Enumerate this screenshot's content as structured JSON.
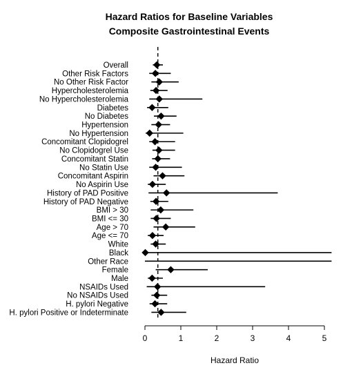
{
  "chart_data": {
    "type": "forest",
    "title_line1": "Hazard Ratios for Baseline Variables",
    "title_line2": "Composite Gastrointestinal Events",
    "xlabel": "Hazard Ratio",
    "xlim": [
      0,
      5.2
    ],
    "xticks": [
      0,
      1,
      2,
      3,
      4,
      5
    ],
    "reference_line": 0.36,
    "rows": [
      {
        "label": "Overall",
        "hr": 0.33,
        "lo": 0.22,
        "hi": 0.5
      },
      {
        "label": "Other Risk Factors",
        "hr": 0.29,
        "lo": 0.12,
        "hi": 0.72
      },
      {
        "label": "No Other Risk Factor",
        "hr": 0.4,
        "lo": 0.18,
        "hi": 0.94
      },
      {
        "label": "Hypercholesterolemia",
        "hr": 0.31,
        "lo": 0.15,
        "hi": 0.63
      },
      {
        "label": "No Hypercholesterolemia",
        "hr": 0.4,
        "lo": 0.12,
        "hi": 1.6
      },
      {
        "label": "Diabetes",
        "hr": 0.2,
        "lo": 0.06,
        "hi": 0.65
      },
      {
        "label": "No Diabetes",
        "hr": 0.45,
        "lo": 0.25,
        "hi": 0.88
      },
      {
        "label": "Hypertension",
        "hr": 0.38,
        "lo": 0.18,
        "hi": 0.7
      },
      {
        "label": "No Hypertension",
        "hr": 0.13,
        "lo": 0.02,
        "hi": 1.07
      },
      {
        "label": "Concomitant Clopidogrel",
        "hr": 0.28,
        "lo": 0.12,
        "hi": 0.84
      },
      {
        "label": "No Clopidogrel Use",
        "hr": 0.39,
        "lo": 0.21,
        "hi": 0.84
      },
      {
        "label": "Concomitant Statin",
        "hr": 0.36,
        "lo": 0.2,
        "hi": 0.7
      },
      {
        "label": "No Statin Use",
        "hr": 0.3,
        "lo": 0.12,
        "hi": 1.03
      },
      {
        "label": "Concomitant Aspirin",
        "hr": 0.49,
        "lo": 0.24,
        "hi": 1.1
      },
      {
        "label": "No Aspirin Use",
        "hr": 0.21,
        "lo": 0.08,
        "hi": 0.58
      },
      {
        "label": "History of PAD Positive",
        "hr": 0.6,
        "lo": 0.1,
        "hi": 3.7
      },
      {
        "label": "History of PAD Negative",
        "hr": 0.31,
        "lo": 0.15,
        "hi": 0.65
      },
      {
        "label": "BMI > 30",
        "hr": 0.44,
        "lo": 0.16,
        "hi": 1.35
      },
      {
        "label": "BMI <= 30",
        "hr": 0.32,
        "lo": 0.16,
        "hi": 0.72
      },
      {
        "label": "Age > 70",
        "hr": 0.58,
        "lo": 0.24,
        "hi": 1.4
      },
      {
        "label": "Age <= 70",
        "hr": 0.21,
        "lo": 0.08,
        "hi": 0.52
      },
      {
        "label": "White",
        "hr": 0.3,
        "lo": 0.16,
        "hi": 0.58
      },
      {
        "label": "Black",
        "hr": 0.01,
        "lo": 0.0,
        "hi": 5.2
      },
      {
        "label": "Other Race",
        "hr": null,
        "lo": 0.0,
        "hi": 5.2
      },
      {
        "label": "Female",
        "hr": 0.72,
        "lo": 0.3,
        "hi": 1.75
      },
      {
        "label": "Male",
        "hr": 0.2,
        "lo": 0.08,
        "hi": 0.5
      },
      {
        "label": "NSAIDs Used",
        "hr": 0.35,
        "lo": 0.05,
        "hi": 3.35
      },
      {
        "label": "No NSAIDs Used",
        "hr": 0.33,
        "lo": 0.18,
        "hi": 0.62
      },
      {
        "label": "H. pylori Negative",
        "hr": 0.28,
        "lo": 0.13,
        "hi": 0.62
      },
      {
        "label": "H. pylori Positive or Indeterminate",
        "hr": 0.45,
        "lo": 0.18,
        "hi": 1.15
      }
    ]
  }
}
